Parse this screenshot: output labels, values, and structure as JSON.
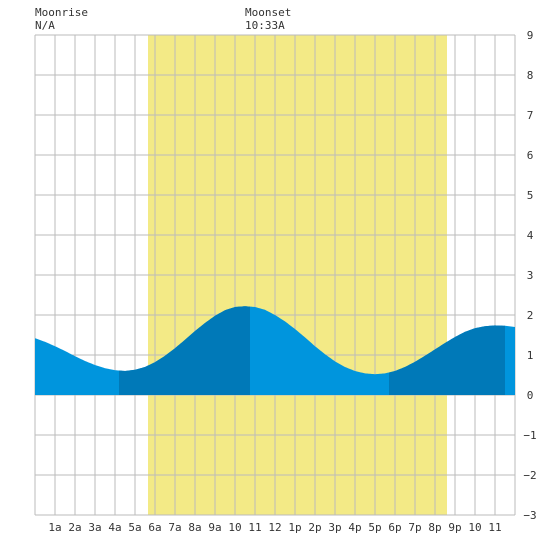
{
  "header": {
    "moonrise_label": "Moonrise",
    "moonrise_value": "N/A",
    "moonset_label": "Moonset",
    "moonset_value": "10:33A"
  },
  "chart_data": {
    "type": "area",
    "title": "",
    "xlabel": "",
    "ylabel": "",
    "x_tick_labels": [
      "1a",
      "2a",
      "3a",
      "4a",
      "5a",
      "6a",
      "7a",
      "8a",
      "9a",
      "10",
      "11",
      "12",
      "1p",
      "2p",
      "3p",
      "4p",
      "5p",
      "6p",
      "7p",
      "8p",
      "9p",
      "10",
      "11"
    ],
    "y_ticks": [
      9,
      8,
      7,
      6,
      5,
      4,
      3,
      2,
      1,
      0,
      -1,
      -2,
      -3
    ],
    "xlim": [
      0,
      24
    ],
    "ylim": [
      -3,
      9
    ],
    "grid": true,
    "daylight": {
      "start": 5.65,
      "end": 20.6,
      "color": "#f3ea86"
    },
    "series_color_light": "#0095dd",
    "series_color_dark": "#0079b8",
    "dark_segments": [
      [
        4.2,
        10.75
      ],
      [
        17.7,
        23.5
      ]
    ],
    "series": [
      {
        "x": [
          0,
          0.5,
          1,
          1.5,
          2,
          2.5,
          3,
          3.5,
          4,
          4.5,
          5,
          5.5,
          6,
          6.5,
          7,
          7.5,
          8,
          8.5,
          9,
          9.5,
          10,
          10.5,
          11,
          11.5,
          12,
          12.5,
          13,
          13.5,
          14,
          14.5,
          15,
          15.5,
          16,
          16.5,
          17,
          17.5,
          18,
          18.5,
          19,
          19.5,
          20,
          20.5,
          21,
          21.5,
          22,
          22.5,
          23,
          23.5,
          24
        ],
        "y": [
          1.42,
          1.33,
          1.22,
          1.1,
          0.97,
          0.85,
          0.75,
          0.67,
          0.62,
          0.6,
          0.63,
          0.7,
          0.82,
          0.98,
          1.17,
          1.38,
          1.6,
          1.8,
          1.98,
          2.12,
          2.2,
          2.22,
          2.2,
          2.13,
          2.0,
          1.84,
          1.65,
          1.44,
          1.22,
          1.02,
          0.84,
          0.7,
          0.6,
          0.54,
          0.52,
          0.54,
          0.6,
          0.7,
          0.83,
          0.98,
          1.14,
          1.3,
          1.45,
          1.58,
          1.67,
          1.72,
          1.74,
          1.73,
          1.7
        ]
      }
    ]
  }
}
